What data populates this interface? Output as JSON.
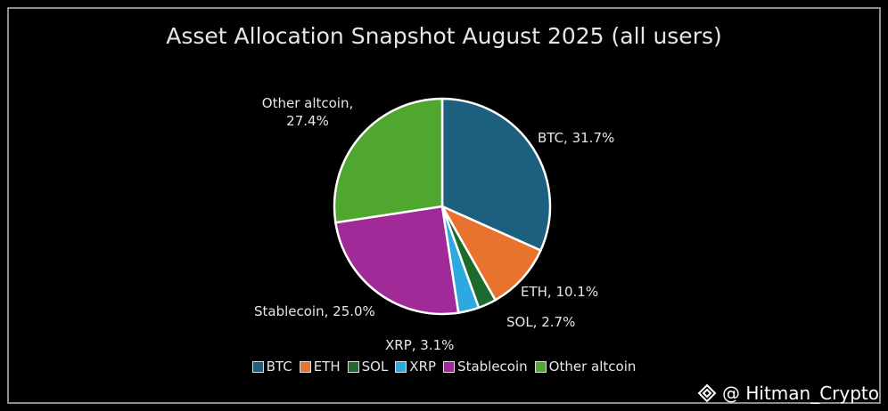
{
  "chart_data": {
    "type": "pie",
    "title": "Asset Allocation Snapshot August 2025 (all users)",
    "categories": [
      "BTC",
      "ETH",
      "SOL",
      "XRP",
      "Stablecoin",
      "Other altcoin"
    ],
    "values": [
      31.7,
      10.1,
      2.7,
      3.1,
      25.0,
      27.4
    ],
    "value_labels": [
      "BTC, 31.7%",
      "ETH, 10.1%",
      "SOL, 2.7%",
      "XRP, 3.1%",
      "Stablecoin, 25.0%",
      "Other altcoin, 27.4%"
    ],
    "colors": [
      "#1d5f7f",
      "#e8732e",
      "#1e6a2d",
      "#2ea9df",
      "#a02a98",
      "#4fa72f"
    ],
    "legend": "bottom"
  },
  "watermark": "@ Hitman_Crypto"
}
